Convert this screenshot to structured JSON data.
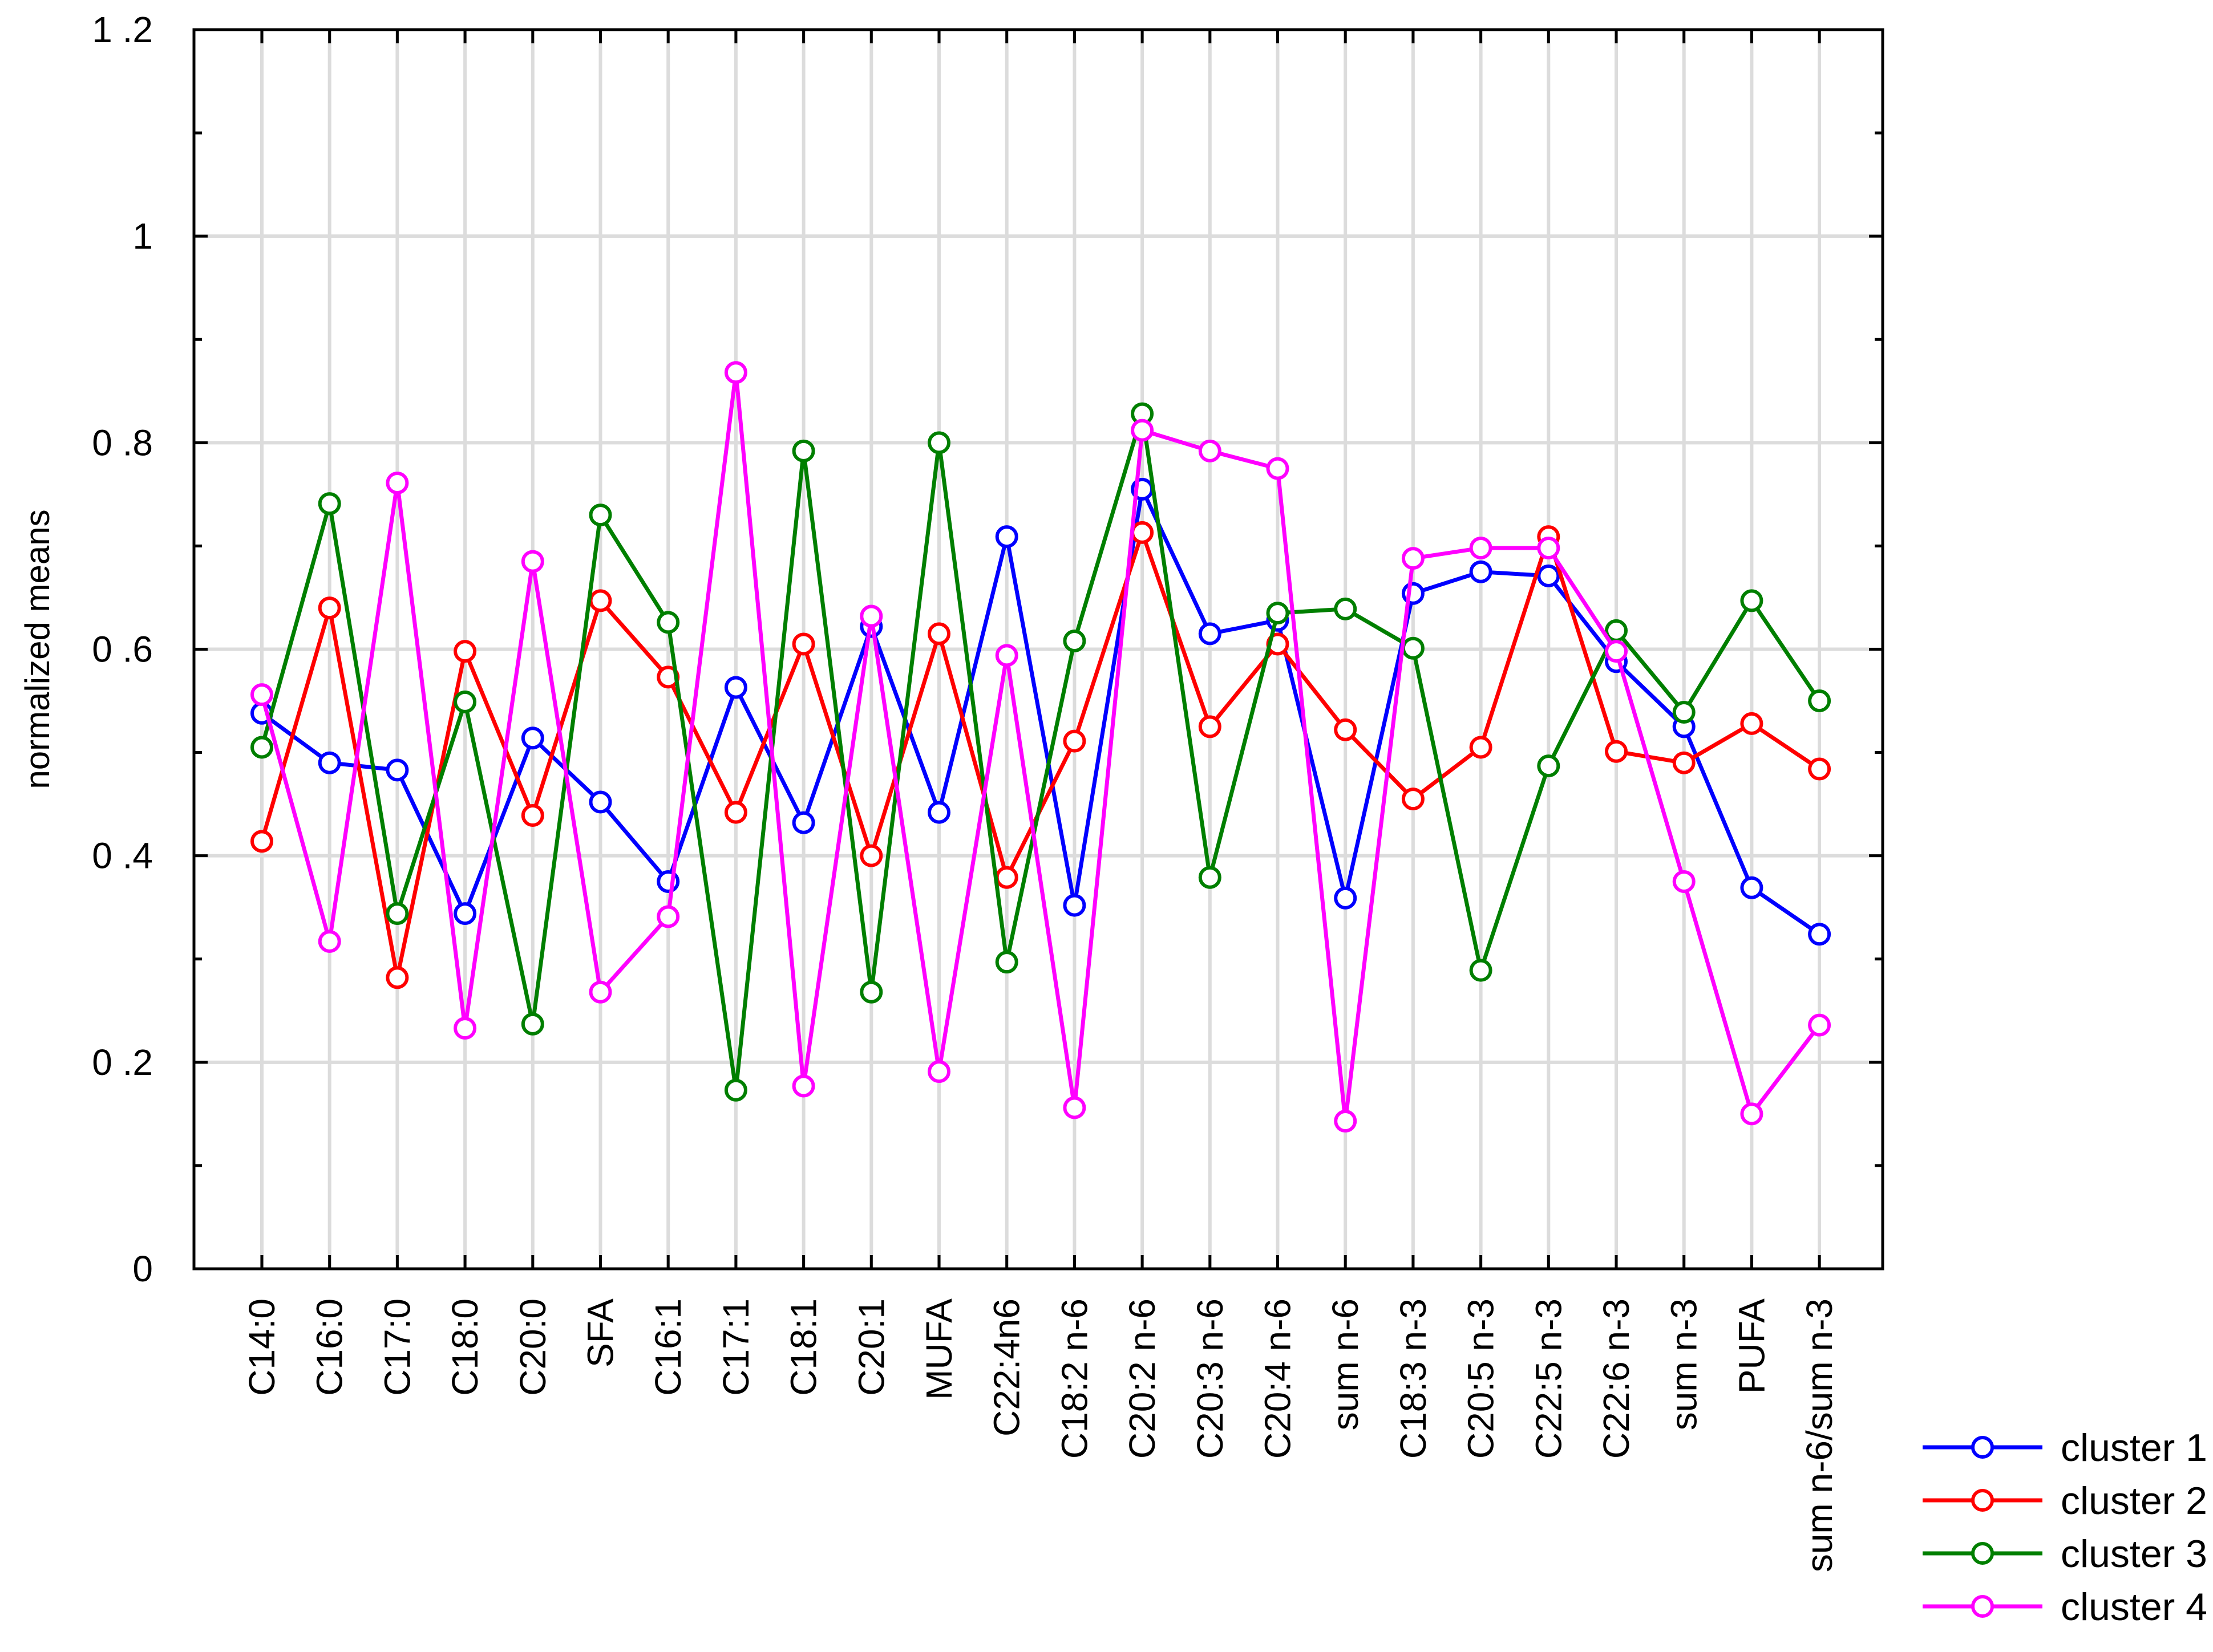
{
  "chart_data": {
    "type": "line",
    "title": "",
    "xlabel": "",
    "ylabel": "normalized means",
    "ylim": [
      0,
      1.2
    ],
    "yticks": [
      0,
      0.2,
      0.4,
      0.6,
      0.8,
      1,
      1.2
    ],
    "ytick_labels": [
      "0",
      "0 .2",
      "0 .4",
      "0 .6",
      "0 .8",
      "1",
      "1 .2"
    ],
    "grid": true,
    "legend_position": "bottom-right outside",
    "categories": [
      "C14:0",
      "C16:0",
      "C17:0",
      "C18:0",
      "C20:0",
      "SFA",
      "C16:1",
      "C17:1",
      "C18:1",
      "C20:1",
      "MUFA",
      "C22:4n6",
      "C18:2 n-6",
      "C20:2 n-6",
      "C20:3 n-6",
      "C20:4 n-6",
      "sum n-6",
      "C18:3 n-3",
      "C20:5 n-3",
      "C22:5 n-3",
      "C22:6 n-3",
      "sum n-3",
      "PUFA",
      "sum n-6/sum n-3"
    ],
    "series": [
      {
        "name": "cluster 1",
        "color": "#0000ff",
        "values": [
          0.538,
          0.49,
          0.483,
          0.344,
          0.514,
          0.452,
          0.375,
          0.563,
          0.432,
          0.622,
          0.442,
          0.709,
          0.352,
          0.755,
          0.615,
          0.628,
          0.359,
          0.654,
          0.675,
          0.671,
          0.588,
          0.525,
          0.369,
          0.324
        ]
      },
      {
        "name": "cluster 2",
        "color": "#ff0000",
        "values": [
          0.414,
          0.64,
          0.282,
          0.598,
          0.439,
          0.647,
          0.573,
          0.442,
          0.605,
          0.4,
          0.615,
          0.379,
          0.511,
          0.713,
          0.525,
          0.605,
          0.522,
          0.455,
          0.505,
          0.709,
          0.501,
          0.49,
          0.528,
          0.484
        ]
      },
      {
        "name": "cluster 3",
        "color": "#007f00",
        "values": [
          0.505,
          0.741,
          0.344,
          0.549,
          0.237,
          0.73,
          0.626,
          0.173,
          0.792,
          0.268,
          0.8,
          0.297,
          0.608,
          0.828,
          0.379,
          0.635,
          0.639,
          0.601,
          0.289,
          0.487,
          0.618,
          0.539,
          0.647,
          0.55
        ]
      },
      {
        "name": "cluster 4",
        "color": "#ff00ff",
        "values": [
          0.556,
          0.317,
          0.761,
          0.233,
          0.685,
          0.268,
          0.341,
          0.868,
          0.177,
          0.632,
          0.191,
          0.594,
          0.156,
          0.812,
          0.792,
          0.775,
          0.143,
          0.688,
          0.698,
          0.698,
          0.598,
          0.375,
          0.15,
          0.236
        ]
      }
    ]
  }
}
